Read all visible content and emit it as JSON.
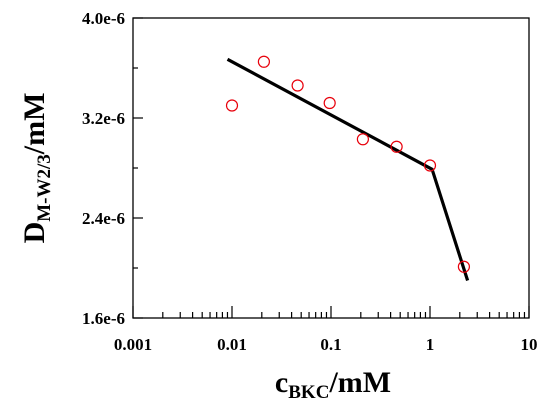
{
  "chart_data": {
    "type": "scatter",
    "x_scale": "log",
    "y_scale": "linear",
    "xlim": [
      0.001,
      10
    ],
    "ylim": [
      1.6e-06,
      4e-06
    ],
    "x_ticks": [
      0.001,
      0.01,
      0.1,
      1,
      10
    ],
    "x_tick_labels": [
      "0.001",
      "0.01",
      "0.1",
      "1",
      "10"
    ],
    "y_ticks": [
      1.6e-06,
      2.4e-06,
      3.2e-06,
      4e-06
    ],
    "y_tick_labels": [
      "1.6e-6",
      "2.4e-6",
      "3.2e-6",
      "4.0e-6"
    ],
    "xlabel": {
      "main": "c",
      "sub": "BKC",
      "rest": "/mM"
    },
    "ylabel": {
      "main": "D",
      "sub": "M-W2/3",
      "rest": "/mM"
    },
    "grid": false,
    "legend": "none",
    "series": [
      {
        "kind": "markers",
        "marker": "open-circle",
        "color": "#e8000b",
        "x": [
          0.01,
          0.021,
          0.046,
          0.097,
          0.21,
          0.46,
          1.0,
          2.2
        ],
        "y": [
          3.3e-06,
          3.65e-06,
          3.46e-06,
          3.32e-06,
          3.03e-06,
          2.97e-06,
          2.82e-06,
          2.01e-06
        ]
      },
      {
        "kind": "line",
        "color": "#000000",
        "x": [
          0.009,
          1.05,
          2.4
        ],
        "y": [
          3.67e-06,
          2.79e-06,
          1.9e-06
        ]
      }
    ]
  }
}
